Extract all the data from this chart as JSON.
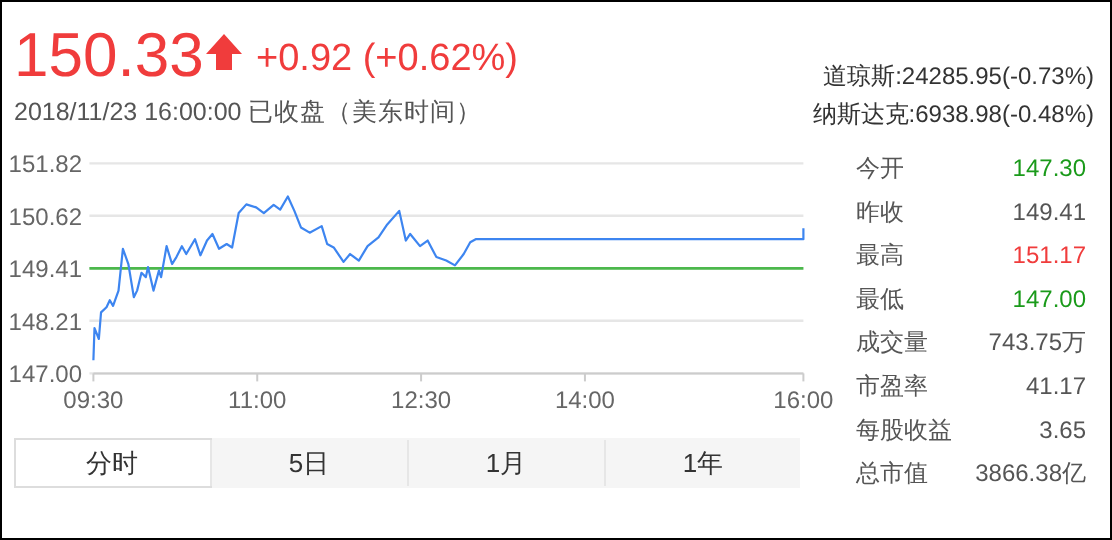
{
  "chart_data": [
    {
      "type": "line",
      "title": "150.33",
      "subtitle": "2018/11/23 16:00:00  已收盘（美东时间）",
      "annotations": [
        "+0.92 (+0.62%)",
        "道琼斯:24285.95(-0.73%)",
        "纳斯达克:6938.98(-0.48%)",
        "分时",
        "5日",
        "1月",
        "1年"
      ],
      "xlim": [
        9.5,
        16
      ],
      "ylim": [
        147.0,
        151.82
      ],
      "xticks": [
        {
          "value": 9.5,
          "label": "09:30"
        },
        {
          "value": 11,
          "label": "11:00"
        },
        {
          "value": 12.5,
          "label": "12:30"
        },
        {
          "value": 14,
          "label": "14:00"
        },
        {
          "value": 16,
          "label": "16:00"
        }
      ],
      "yticks": [
        {
          "value": 147.0,
          "label": "147.00"
        },
        148.21,
        149.41,
        150.62,
        151.82
      ],
      "grid": "y",
      "ref_lines": [
        {
          "axis": "y",
          "value": 149.41,
          "color": "#4cb84c"
        }
      ],
      "series": [
        {
          "color": "#3d85f0",
          "x": [
            9.5,
            9.51,
            9.55,
            9.57,
            9.62,
            9.65,
            9.68,
            9.73,
            9.77,
            9.82,
            9.87,
            9.9,
            9.94,
            9.98,
            10.0,
            10.05,
            10.1,
            10.12,
            10.17,
            10.22,
            10.26,
            10.31,
            10.35,
            10.43,
            10.48,
            10.54,
            10.59,
            10.65,
            10.72,
            10.77,
            10.83,
            10.9,
            10.99,
            11.06,
            11.15,
            11.21,
            11.28,
            11.34,
            11.4,
            11.48,
            11.59,
            11.64,
            11.7,
            11.79,
            11.85,
            11.93,
            12.01,
            12.11,
            12.19,
            12.3,
            12.36,
            12.4,
            12.49,
            12.56,
            12.64,
            12.73,
            12.81,
            12.89,
            12.95,
            13.0,
            16.0,
            16.0
          ],
          "values": [
            147.3,
            148.04,
            147.79,
            148.4,
            148.52,
            148.68,
            148.55,
            148.9,
            149.86,
            149.51,
            148.75,
            148.9,
            149.31,
            149.21,
            149.44,
            148.9,
            149.36,
            149.21,
            149.92,
            149.51,
            149.67,
            149.92,
            149.74,
            150.08,
            149.71,
            150.05,
            150.2,
            149.86,
            149.97,
            149.89,
            150.68,
            150.88,
            150.81,
            150.68,
            150.87,
            150.76,
            151.06,
            150.73,
            150.35,
            150.23,
            150.38,
            149.97,
            149.89,
            149.56,
            149.74,
            149.59,
            149.92,
            150.12,
            150.42,
            150.73,
            150.05,
            150.2,
            149.92,
            150.05,
            149.67,
            149.59,
            149.48,
            149.74,
            150.01,
            150.08,
            150.08,
            150.33
          ]
        }
      ]
    },
    {
      "type": "other",
      "categories": [
        "今开",
        "昨收",
        "最高",
        "最低",
        "成交量",
        "市盈率",
        "每股收益",
        "总市值"
      ],
      "value_labels": [
        "147.30",
        "149.41",
        "151.17",
        "147.00",
        "743.75万",
        "41.17",
        "3.65",
        "3866.38亿"
      ],
      "colors": [
        "#1a9a1a",
        "#555555",
        "#f03c3c",
        "#1a9a1a",
        "#555555",
        "#555555",
        "#555555",
        "#555555"
      ]
    }
  ]
}
